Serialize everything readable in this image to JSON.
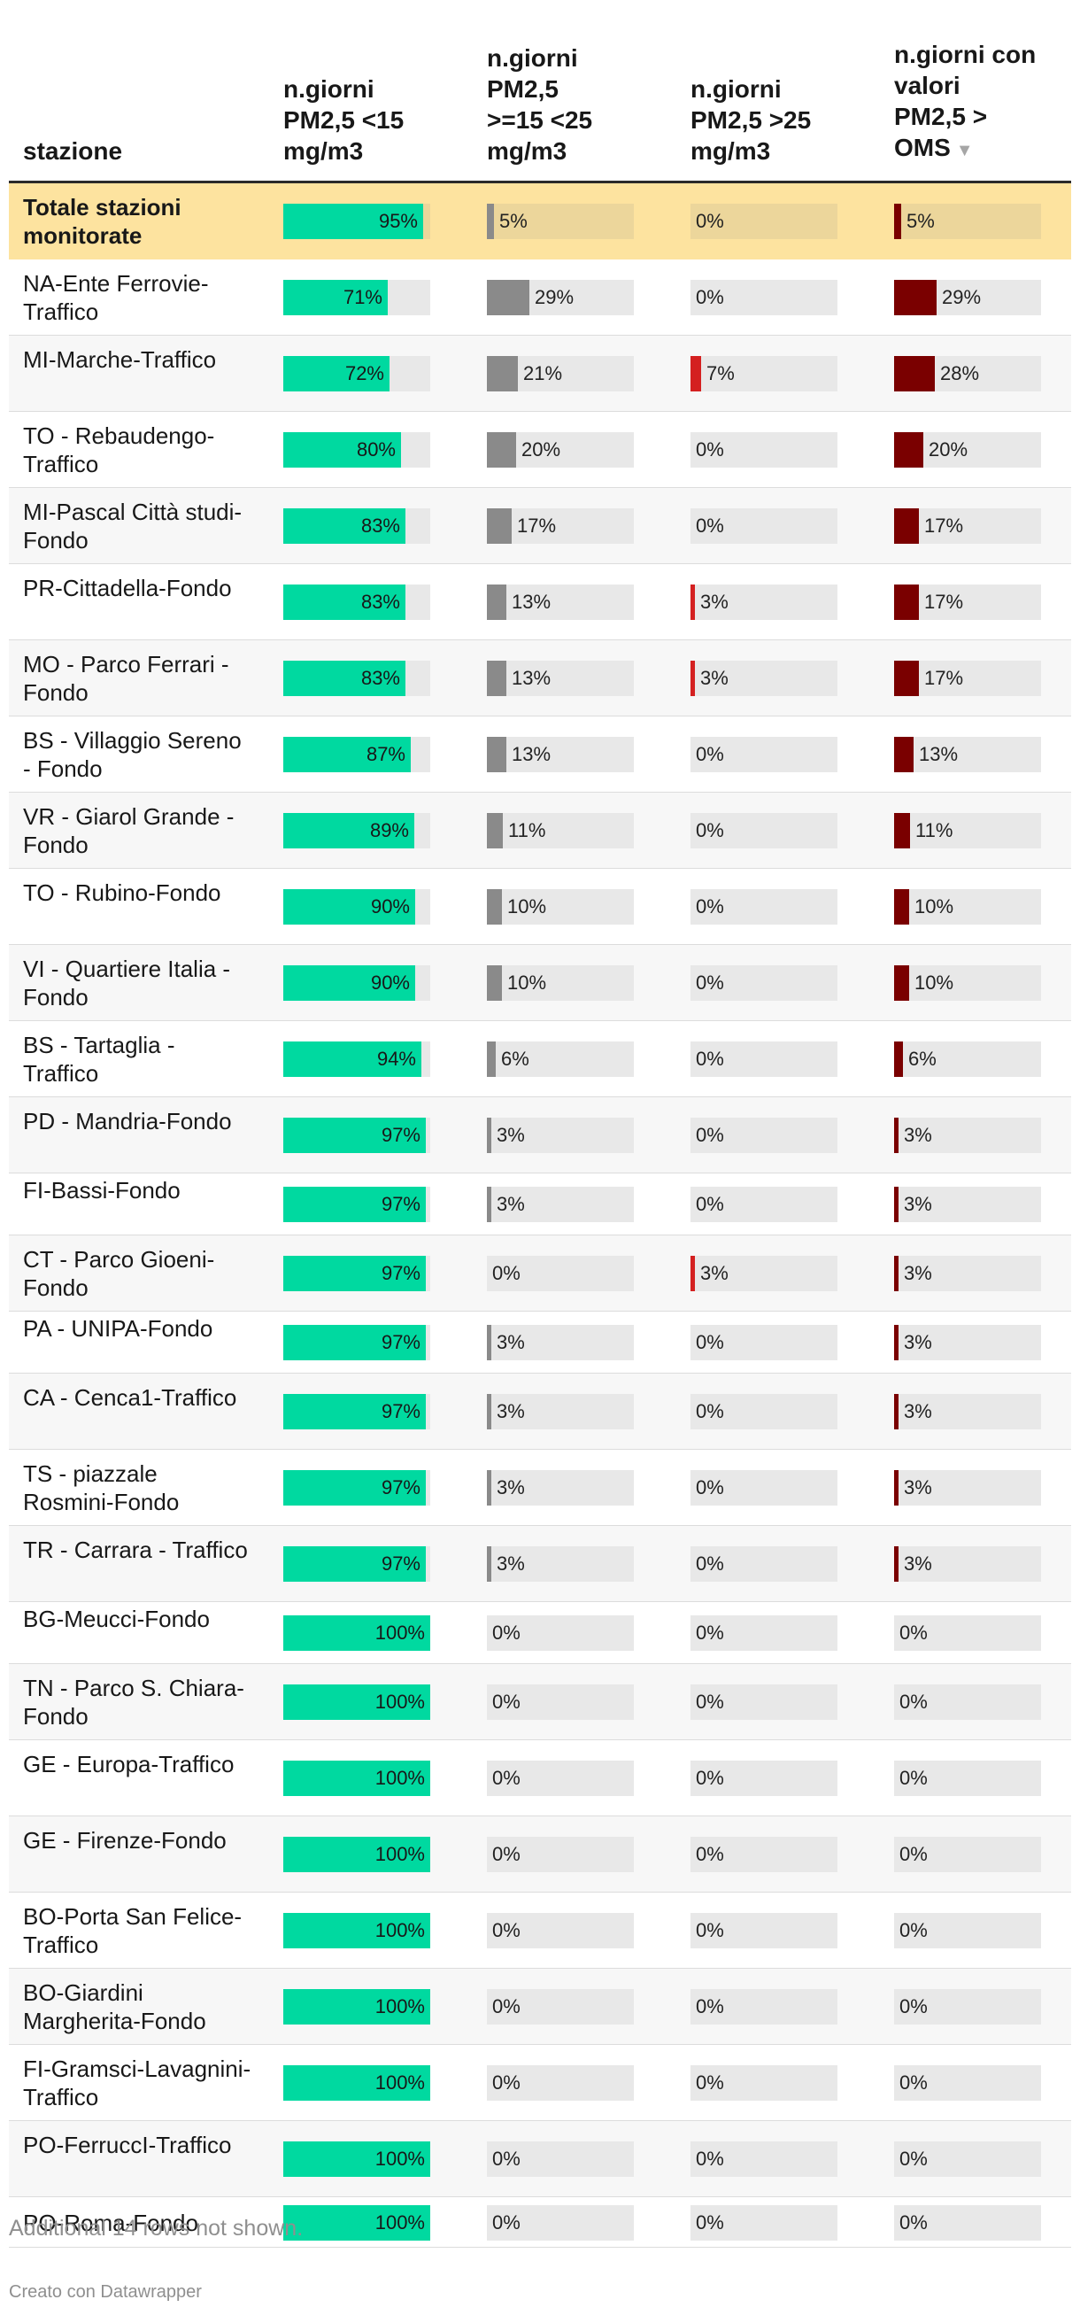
{
  "header": {
    "station": "stazione",
    "col1": "n.giorni\nPM2,5  <15\nmg/m3",
    "col2": "n.giorni\nPM2,5\n>=15 <25\nmg/m3",
    "col3": "n.giorni\nPM2,5  >25\nmg/m3",
    "col4": "n.giorni con\nvalori\nPM2,5 >\nOMS",
    "sort_icon": "triangle-down-icon"
  },
  "colors": {
    "col1": "#00d9a0",
    "col2": "#8a8a8a",
    "col3": "#d42020",
    "col4": "#7a0000",
    "track": "#e8e8e8",
    "total_bg": "#fde39f"
  },
  "chart_data": {
    "type": "table",
    "unit": "%",
    "columns": [
      "n.giorni PM2,5 <15 mg/m3",
      "n.giorni PM2,5 >=15 <25 mg/m3",
      "n.giorni PM2,5 >25 mg/m3",
      "n.giorni con valori PM2,5 > OMS"
    ],
    "sorted_by": "n.giorni con valori PM2,5 > OMS",
    "rows": [
      {
        "name": "Totale stazioni monitorate",
        "values": [
          95,
          5,
          0,
          5
        ],
        "total": true
      },
      {
        "name": "NA-Ente Ferrovie-Traffico",
        "values": [
          71,
          29,
          0,
          29
        ]
      },
      {
        "name": "MI-Marche-Traffico",
        "values": [
          72,
          21,
          7,
          28
        ]
      },
      {
        "name": "TO - Rebaudengo-Traffico",
        "values": [
          80,
          20,
          0,
          20
        ]
      },
      {
        "name": "MI-Pascal Città studi-Fondo",
        "values": [
          83,
          17,
          0,
          17
        ]
      },
      {
        "name": "PR-Cittadella-Fondo",
        "values": [
          83,
          13,
          3,
          17
        ]
      },
      {
        "name": "MO - Parco Ferrari - Fondo",
        "values": [
          83,
          13,
          3,
          17
        ]
      },
      {
        "name": "BS - Villaggio Sereno - Fondo",
        "values": [
          87,
          13,
          0,
          13
        ]
      },
      {
        "name": "VR - Giarol Grande - Fondo",
        "values": [
          89,
          11,
          0,
          11
        ]
      },
      {
        "name": "TO - Rubino-Fondo",
        "values": [
          90,
          10,
          0,
          10
        ]
      },
      {
        "name": "VI - Quartiere Italia - Fondo",
        "values": [
          90,
          10,
          0,
          10
        ]
      },
      {
        "name": "BS - Tartaglia - Traffico",
        "values": [
          94,
          6,
          0,
          6
        ]
      },
      {
        "name": "PD - Mandria-Fondo",
        "values": [
          97,
          3,
          0,
          3
        ]
      },
      {
        "name": "FI-Bassi-Fondo",
        "values": [
          97,
          3,
          0,
          3
        ]
      },
      {
        "name": "CT - Parco Gioeni-Fondo",
        "values": [
          97,
          0,
          3,
          3
        ]
      },
      {
        "name": "PA - UNIPA-Fondo",
        "values": [
          97,
          3,
          0,
          3
        ]
      },
      {
        "name": "CA - Cenca1-Traffico",
        "values": [
          97,
          3,
          0,
          3
        ]
      },
      {
        "name": "TS - piazzale Rosmini-Fondo",
        "values": [
          97,
          3,
          0,
          3
        ]
      },
      {
        "name": "TR - Carrara - Traffico",
        "values": [
          97,
          3,
          0,
          3
        ]
      },
      {
        "name": "BG-Meucci-Fondo",
        "values": [
          100,
          0,
          0,
          0
        ]
      },
      {
        "name": "TN - Parco S. Chiara-Fondo",
        "values": [
          100,
          0,
          0,
          0
        ]
      },
      {
        "name": "GE - Europa-Traffico",
        "values": [
          100,
          0,
          0,
          0
        ]
      },
      {
        "name": "GE - Firenze-Fondo",
        "values": [
          100,
          0,
          0,
          0
        ]
      },
      {
        "name": "BO-Porta San Felice-Traffico",
        "values": [
          100,
          0,
          0,
          0
        ]
      },
      {
        "name": "BO-Giardini Margherita-Fondo",
        "values": [
          100,
          0,
          0,
          0
        ]
      },
      {
        "name": "FI-Gramsci-Lavagnini- Traffico",
        "values": [
          100,
          0,
          0,
          0
        ]
      },
      {
        "name": "PO-FerruccI-Traffico",
        "values": [
          100,
          0,
          0,
          0
        ]
      },
      {
        "name": "PO-Roma-Fondo",
        "values": [
          100,
          0,
          0,
          0
        ]
      }
    ]
  },
  "footnote": "Additional 14 rows not shown.",
  "credit": "Creato con Datawrapper"
}
